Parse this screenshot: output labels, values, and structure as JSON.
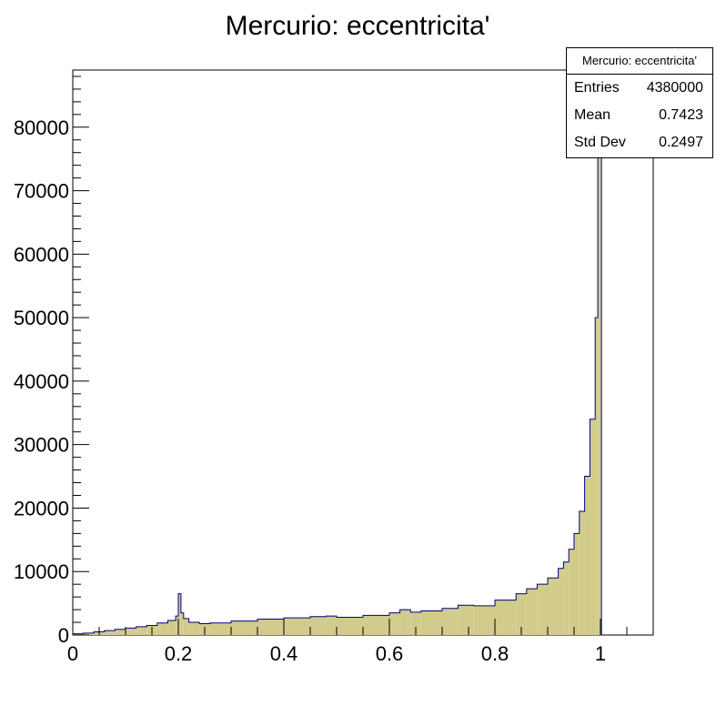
{
  "chart_data": {
    "type": "bar",
    "title": "Mercurio: eccentricita'",
    "xlabel": "",
    "ylabel": "",
    "xlim": [
      0,
      1.1
    ],
    "ylim": [
      0,
      89000
    ],
    "x_ticks": [
      "0",
      "0.2",
      "0.4",
      "0.6",
      "0.8",
      "1"
    ],
    "y_ticks": [
      "0",
      "10000",
      "20000",
      "30000",
      "40000",
      "50000",
      "60000",
      "70000",
      "80000"
    ],
    "fill_color": "#d2cc8c",
    "line_color": "#00007f",
    "grid": false,
    "series": [
      {
        "x": [
          0.0,
          0.02,
          0.04,
          0.06,
          0.08,
          0.1,
          0.12,
          0.14,
          0.16,
          0.18,
          0.195,
          0.2,
          0.205,
          0.21,
          0.22,
          0.24,
          0.26,
          0.3,
          0.35,
          0.4,
          0.45,
          0.48,
          0.5,
          0.55,
          0.6,
          0.62,
          0.64,
          0.66,
          0.7,
          0.73,
          0.76,
          0.8,
          0.84,
          0.86,
          0.88,
          0.9,
          0.92,
          0.93,
          0.94,
          0.95,
          0.96,
          0.97,
          0.98,
          0.99,
          0.995,
          1.0
        ],
        "values": [
          200,
          300,
          500,
          700,
          900,
          1100,
          1300,
          1500,
          1900,
          2300,
          3000,
          6500,
          3500,
          2600,
          2000,
          1800,
          1900,
          2200,
          2500,
          2700,
          2900,
          3000,
          2800,
          3100,
          3500,
          4000,
          3600,
          3800,
          4200,
          4700,
          4600,
          5500,
          6500,
          7300,
          8000,
          9000,
          10500,
          11500,
          13500,
          16000,
          19500,
          25000,
          34000,
          50000,
          87000,
          87000
        ]
      }
    ]
  },
  "stats_box": {
    "title": "Mercurio: eccentricita'",
    "entries_label": "Entries",
    "entries_value": "4380000",
    "mean_label": "Mean",
    "mean_value": "0.7423",
    "stddev_label": "Std Dev",
    "stddev_value": "0.2497"
  }
}
